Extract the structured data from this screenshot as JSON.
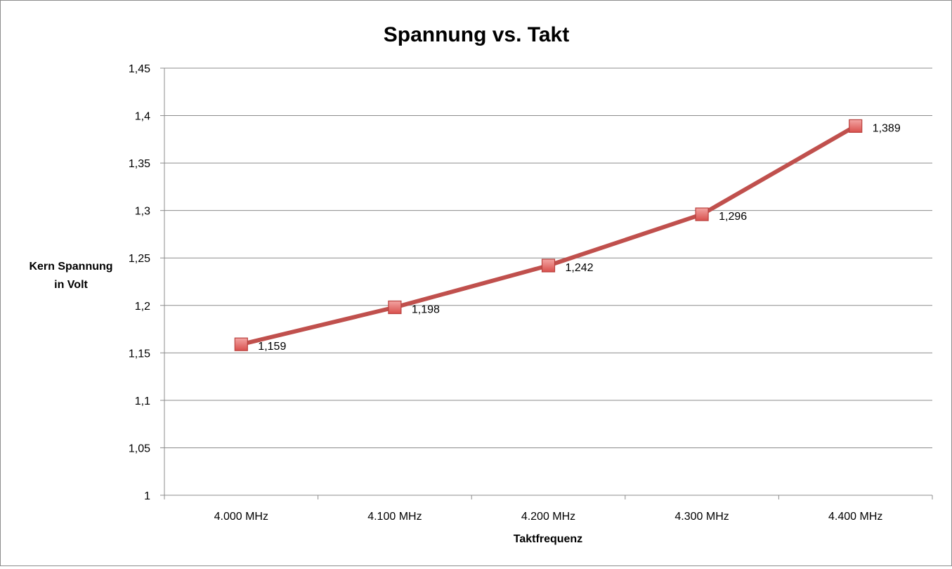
{
  "chart_data": {
    "type": "line",
    "title": "Spannung vs. Takt",
    "xlabel": "Taktfrequenz",
    "ylabel_lines": [
      "Kern Spannung",
      "in Volt"
    ],
    "categories": [
      "4.000 MHz",
      "4.100 MHz",
      "4.200 MHz",
      "4.300 MHz",
      "4.400 MHz"
    ],
    "series": [
      {
        "values": [
          1.159,
          1.198,
          1.242,
          1.296,
          1.389
        ],
        "labels": [
          "1,159",
          "1,198",
          "1,242",
          "1,296",
          "1,389"
        ],
        "line_color": "#c0504d",
        "marker": "square",
        "marker_color": "#e46c6a"
      }
    ],
    "ylim": [
      1,
      1.45
    ],
    "yticks": [
      1,
      1.05,
      1.1,
      1.15,
      1.2,
      1.25,
      1.3,
      1.35,
      1.4,
      1.45
    ],
    "ytick_labels": [
      "1",
      "1,05",
      "1,1",
      "1,15",
      "1,2",
      "1,25",
      "1,3",
      "1,35",
      "1,4",
      "1,45"
    ],
    "grid": true,
    "legend": "none"
  }
}
